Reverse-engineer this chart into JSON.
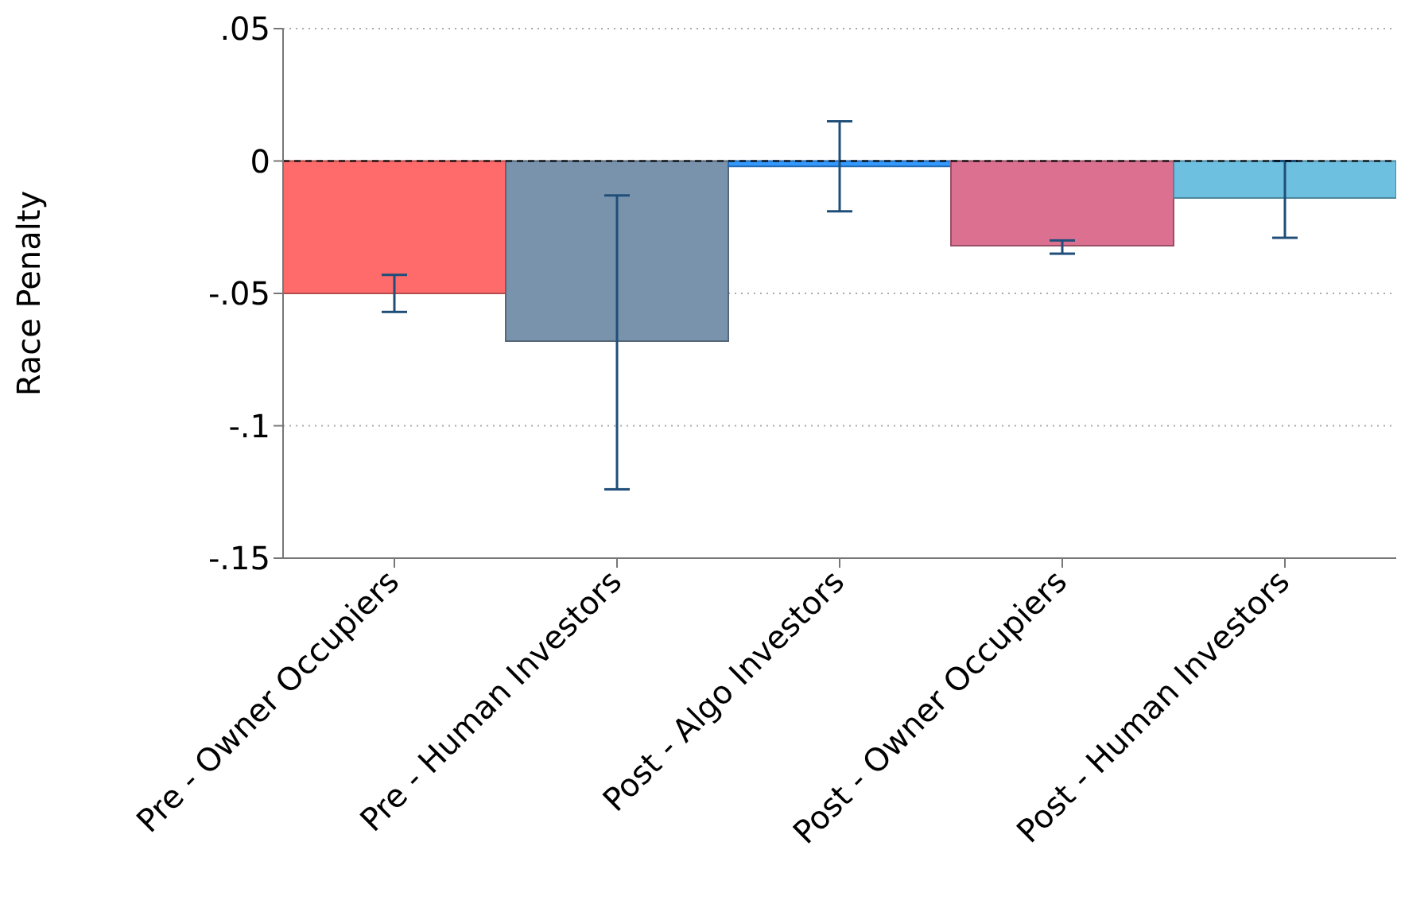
{
  "chart_data": {
    "type": "bar",
    "ylabel": "Race Penalty",
    "categories": [
      "Pre - Owner Occupiers",
      "Pre - Human Investors",
      "Post - Algo Investors",
      "Post - Owner Occupiers",
      "Post - Human Investors"
    ],
    "values": [
      -0.05,
      -0.068,
      -0.002,
      -0.032,
      -0.014
    ],
    "colors": [
      "#ff6b6b",
      "#7a93ad",
      "#3399ff",
      "#db7090",
      "#6ec0e0"
    ],
    "errors": [
      [
        -0.057,
        -0.043
      ],
      [
        -0.124,
        -0.013
      ],
      [
        -0.019,
        0.015
      ],
      [
        -0.035,
        -0.03
      ],
      [
        -0.029,
        0
      ]
    ],
    "ylim": [
      -0.15,
      0.05
    ],
    "yticks": [
      {
        "value": -0.15,
        "label": "-.15"
      },
      {
        "value": -0.1,
        "label": "-.1"
      },
      {
        "value": -0.05,
        "label": "-.05"
      },
      0,
      {
        "value": 0.05,
        "label": ".05"
      }
    ],
    "grid": "y",
    "ref_lines": [
      {
        "axis": "y",
        "value": 0,
        "line_style": "dashed",
        "color": "#000000"
      }
    ]
  }
}
